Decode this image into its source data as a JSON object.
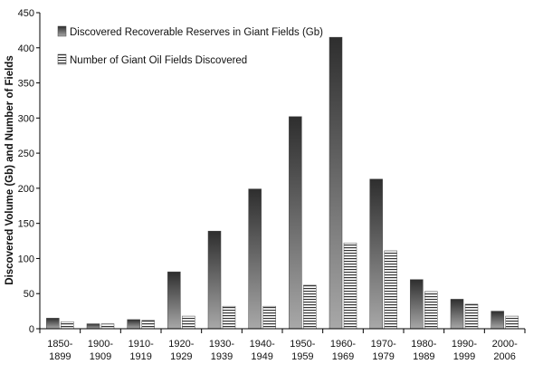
{
  "chart_data": {
    "type": "bar",
    "categories": [
      [
        "1850-",
        "1899"
      ],
      [
        "1900-",
        "1909"
      ],
      [
        "1910-",
        "1919"
      ],
      [
        "1920-",
        "1929"
      ],
      [
        "1930-",
        "1939"
      ],
      [
        "1940-",
        "1949"
      ],
      [
        "1950-",
        "1959"
      ],
      [
        "1960-",
        "1969"
      ],
      [
        "1970-",
        "1979"
      ],
      [
        "1980-",
        "1989"
      ],
      [
        "1990-",
        "1999"
      ],
      [
        "2000-",
        "2006"
      ]
    ],
    "series": [
      {
        "name": "Discovered Recoverable Reserves in Giant Fields (Gb)",
        "values": [
          15,
          7,
          13,
          81,
          139,
          199,
          302,
          415,
          213,
          70,
          42,
          25
        ],
        "style": "gradient-dark"
      },
      {
        "name": "Number of Giant Oil Fields Discovered",
        "values": [
          10,
          7,
          12,
          18,
          32,
          32,
          62,
          122,
          111,
          53,
          35,
          18
        ],
        "style": "horizontal-stripes"
      }
    ],
    "ylabel": "Discovered Volume (Gb) and Number of Fields",
    "xlabel": "",
    "title": "",
    "ylim": [
      0,
      450
    ],
    "yticks": [
      0,
      50,
      100,
      150,
      200,
      250,
      300,
      350,
      400,
      450
    ],
    "grid": false,
    "legend_position": "top-left-inside",
    "colors": {
      "dark_top": "#2e2e2e",
      "dark_bottom": "#a8a8a8",
      "stripe": "#333333",
      "axis": "#000000"
    }
  }
}
